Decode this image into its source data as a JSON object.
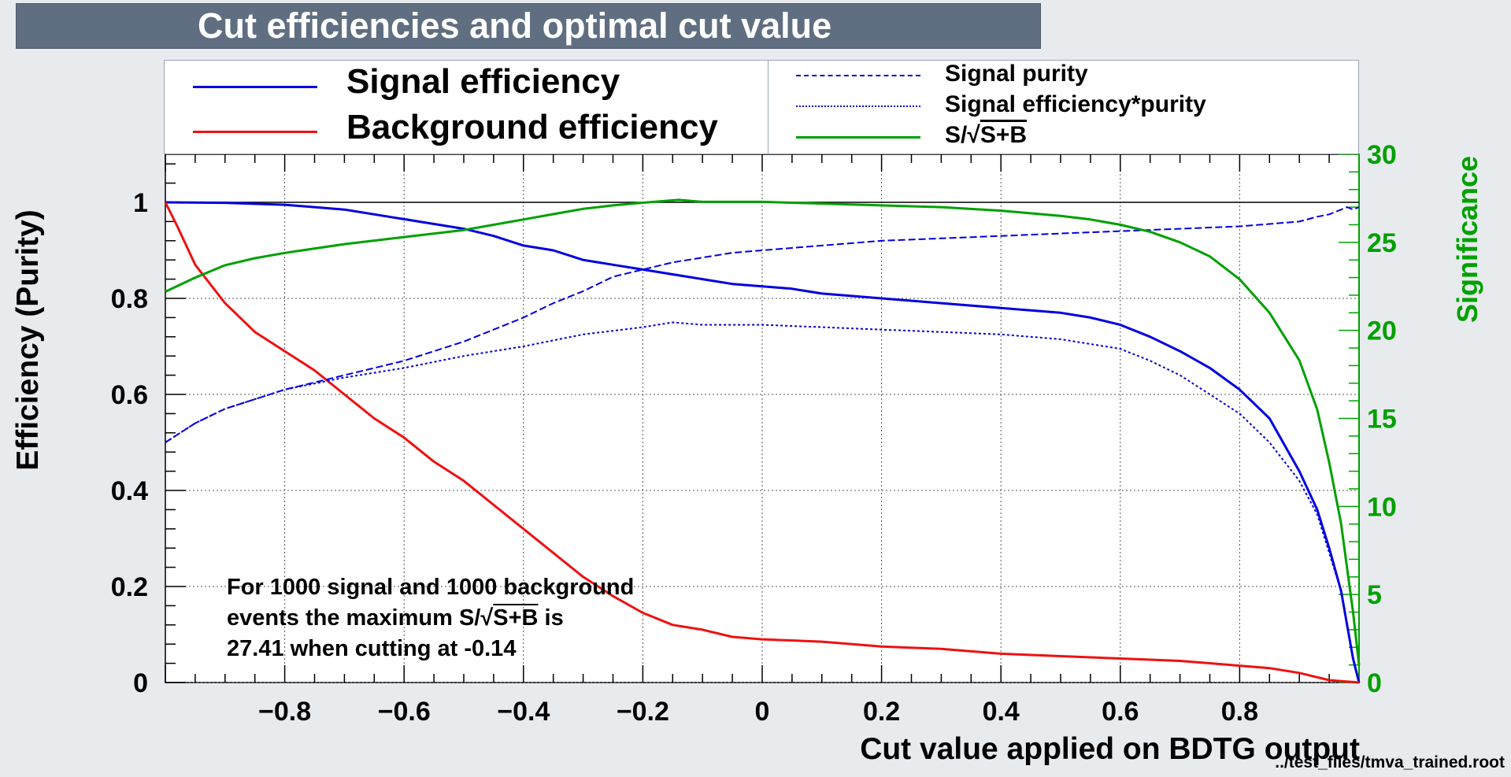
{
  "title": "Cut efficiencies and optimal cut value",
  "file_label": "../test_files/tmva_trained.root",
  "legend": {
    "signal_efficiency": "Signal efficiency",
    "background_efficiency": "Background efficiency",
    "signal_purity": "Signal purity",
    "signal_eff_purity": "Signal efficiency*purity",
    "significance_prefix": "S/",
    "significance_root": "S+B"
  },
  "annotation": {
    "line1": "For 1000 signal and 1000 background",
    "line2_prefix": "events the maximum S/",
    "line2_root": "S+B",
    "line2_suffix": " is",
    "line3": "27.41 when cutting at -0.14"
  },
  "colors": {
    "signal": "#0000e0",
    "background": "#ee1111",
    "significance": "#00a000",
    "frame_bg": "#ffffff",
    "page_bg": "#e8ebee"
  },
  "chart_data": {
    "type": "line",
    "xlabel": "Cut value applied on BDTG output",
    "ylabel": "Efficiency (Purity)",
    "y2label": "Significance",
    "xlim": [
      -1,
      1
    ],
    "ylim": [
      0,
      1.1
    ],
    "y2lim": [
      0,
      30
    ],
    "x_ticks": [
      -0.8,
      -0.6,
      -0.4,
      -0.2,
      0,
      0.2,
      0.4,
      0.6,
      0.8
    ],
    "x_tick_labels": [
      "−0.8",
      "−0.6",
      "−0.4",
      "−0.2",
      "0",
      "0.2",
      "0.4",
      "0.6",
      "0.8"
    ],
    "y_ticks": [
      0,
      0.2,
      0.4,
      0.6,
      0.8,
      1
    ],
    "y_tick_labels": [
      "0",
      "0.2",
      "0.4",
      "0.6",
      "0.8",
      "1"
    ],
    "y2_ticks": [
      0,
      5,
      10,
      15,
      20,
      25,
      30
    ],
    "y2_tick_labels": [
      "0",
      "5",
      "10",
      "15",
      "20",
      "25",
      "30"
    ],
    "grid": true,
    "reference_line_y": 1,
    "series": [
      {
        "name": "Signal efficiency",
        "axis": "left",
        "style": "solid",
        "x": [
          -1,
          -0.9,
          -0.8,
          -0.7,
          -0.6,
          -0.55,
          -0.5,
          -0.45,
          -0.4,
          -0.35,
          -0.3,
          -0.25,
          -0.2,
          -0.15,
          -0.1,
          -0.05,
          0,
          0.05,
          0.1,
          0.2,
          0.3,
          0.4,
          0.5,
          0.55,
          0.6,
          0.65,
          0.7,
          0.75,
          0.8,
          0.85,
          0.9,
          0.93,
          0.95,
          0.97,
          0.98,
          0.99,
          1.0
        ],
        "y": [
          1.0,
          0.999,
          0.995,
          0.985,
          0.965,
          0.955,
          0.945,
          0.93,
          0.91,
          0.9,
          0.88,
          0.87,
          0.86,
          0.85,
          0.84,
          0.83,
          0.825,
          0.82,
          0.81,
          0.8,
          0.79,
          0.78,
          0.77,
          0.76,
          0.745,
          0.72,
          0.69,
          0.655,
          0.61,
          0.55,
          0.44,
          0.36,
          0.28,
          0.19,
          0.12,
          0.05,
          0.0
        ]
      },
      {
        "name": "Background efficiency",
        "axis": "left",
        "style": "solid",
        "x": [
          -1,
          -0.98,
          -0.95,
          -0.9,
          -0.85,
          -0.8,
          -0.75,
          -0.7,
          -0.65,
          -0.6,
          -0.55,
          -0.5,
          -0.45,
          -0.4,
          -0.35,
          -0.3,
          -0.25,
          -0.2,
          -0.15,
          -0.1,
          -0.05,
          0,
          0.1,
          0.2,
          0.3,
          0.4,
          0.5,
          0.6,
          0.7,
          0.8,
          0.85,
          0.9,
          0.95,
          1.0
        ],
        "y": [
          1.0,
          0.95,
          0.87,
          0.79,
          0.73,
          0.69,
          0.65,
          0.6,
          0.55,
          0.51,
          0.46,
          0.42,
          0.37,
          0.32,
          0.27,
          0.22,
          0.18,
          0.145,
          0.12,
          0.11,
          0.095,
          0.09,
          0.085,
          0.075,
          0.07,
          0.06,
          0.055,
          0.05,
          0.045,
          0.035,
          0.03,
          0.02,
          0.005,
          0.0
        ]
      },
      {
        "name": "Signal purity",
        "axis": "left",
        "style": "dashed",
        "x": [
          -1,
          -0.95,
          -0.9,
          -0.85,
          -0.8,
          -0.7,
          -0.6,
          -0.5,
          -0.45,
          -0.4,
          -0.35,
          -0.3,
          -0.25,
          -0.2,
          -0.15,
          -0.1,
          -0.05,
          0,
          0.1,
          0.2,
          0.3,
          0.4,
          0.5,
          0.6,
          0.7,
          0.8,
          0.85,
          0.9,
          0.93,
          0.95,
          0.97,
          0.98,
          0.99,
          1.0
        ],
        "y": [
          0.5,
          0.54,
          0.57,
          0.59,
          0.61,
          0.64,
          0.67,
          0.71,
          0.735,
          0.76,
          0.79,
          0.815,
          0.845,
          0.86,
          0.875,
          0.885,
          0.895,
          0.9,
          0.91,
          0.92,
          0.925,
          0.93,
          0.935,
          0.94,
          0.945,
          0.95,
          0.955,
          0.96,
          0.97,
          0.975,
          0.985,
          0.99,
          0.985,
          0.99
        ]
      },
      {
        "name": "Signal efficiency*purity",
        "axis": "left",
        "style": "dotted",
        "x": [
          -1,
          -0.95,
          -0.9,
          -0.85,
          -0.8,
          -0.7,
          -0.6,
          -0.5,
          -0.4,
          -0.3,
          -0.2,
          -0.15,
          -0.1,
          0,
          0.1,
          0.2,
          0.3,
          0.4,
          0.5,
          0.6,
          0.65,
          0.7,
          0.75,
          0.8,
          0.85,
          0.9,
          0.93,
          0.95,
          0.97,
          0.98,
          0.99,
          1.0
        ],
        "y": [
          0.5,
          0.54,
          0.57,
          0.59,
          0.61,
          0.635,
          0.655,
          0.68,
          0.7,
          0.725,
          0.74,
          0.75,
          0.745,
          0.745,
          0.74,
          0.735,
          0.73,
          0.725,
          0.715,
          0.695,
          0.67,
          0.64,
          0.6,
          0.56,
          0.5,
          0.42,
          0.35,
          0.27,
          0.19,
          0.12,
          0.05,
          0.0
        ]
      },
      {
        "name": "S/√S+B",
        "axis": "right",
        "style": "solid",
        "x": [
          -1,
          -0.95,
          -0.9,
          -0.85,
          -0.8,
          -0.7,
          -0.6,
          -0.5,
          -0.45,
          -0.4,
          -0.35,
          -0.3,
          -0.25,
          -0.2,
          -0.14,
          -0.1,
          0,
          0.1,
          0.2,
          0.3,
          0.4,
          0.5,
          0.55,
          0.6,
          0.65,
          0.7,
          0.75,
          0.8,
          0.85,
          0.9,
          0.93,
          0.95,
          0.97,
          0.98,
          0.99,
          1.0
        ],
        "y": [
          22.2,
          23.0,
          23.7,
          24.1,
          24.4,
          24.9,
          25.3,
          25.7,
          26.0,
          26.3,
          26.6,
          26.9,
          27.1,
          27.25,
          27.41,
          27.3,
          27.3,
          27.2,
          27.1,
          27.0,
          26.8,
          26.5,
          26.3,
          26.0,
          25.6,
          25.0,
          24.2,
          22.9,
          21.0,
          18.3,
          15.5,
          12.5,
          9.0,
          6.5,
          4.0,
          1.0
        ]
      }
    ]
  }
}
